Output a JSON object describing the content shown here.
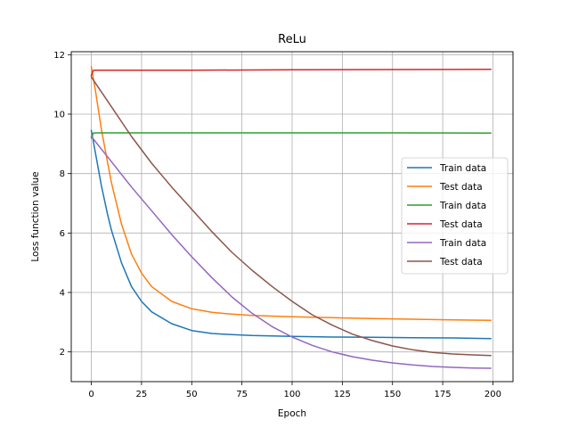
{
  "chart_data": {
    "type": "line",
    "title": "ReLu",
    "xlabel": "Epoch",
    "ylabel": "Loss function value",
    "xlim": [
      -10,
      210
    ],
    "ylim": [
      1.0,
      12.1
    ],
    "xticks": [
      0,
      25,
      50,
      75,
      100,
      125,
      150,
      175,
      200
    ],
    "yticks": [
      2,
      4,
      6,
      8,
      10,
      12
    ],
    "grid": true,
    "legend_position": "center-right",
    "series": [
      {
        "name": "Train data",
        "color": "#1f77b4",
        "x": [
          0,
          2,
          5,
          8,
          10,
          15,
          20,
          25,
          30,
          40,
          50,
          60,
          70,
          80,
          100,
          120,
          140,
          160,
          180,
          199
        ],
        "y": [
          9.45,
          8.7,
          7.6,
          6.65,
          6.1,
          5.0,
          4.2,
          3.7,
          3.35,
          2.95,
          2.72,
          2.62,
          2.58,
          2.55,
          2.52,
          2.5,
          2.49,
          2.48,
          2.47,
          2.45
        ]
      },
      {
        "name": "Test data",
        "color": "#ff7f0e",
        "x": [
          0,
          2,
          5,
          8,
          10,
          15,
          20,
          25,
          30,
          40,
          50,
          60,
          70,
          80,
          100,
          120,
          140,
          160,
          180,
          199
        ],
        "y": [
          11.6,
          10.8,
          9.5,
          8.4,
          7.7,
          6.3,
          5.3,
          4.65,
          4.2,
          3.7,
          3.45,
          3.33,
          3.27,
          3.23,
          3.18,
          3.15,
          3.12,
          3.1,
          3.08,
          3.06
        ]
      },
      {
        "name": "Train data",
        "color": "#2ca02c",
        "x": [
          0,
          1,
          2,
          50,
          100,
          150,
          199
        ],
        "y": [
          9.2,
          9.36,
          9.37,
          9.37,
          9.37,
          9.37,
          9.36
        ]
      },
      {
        "name": "Test data",
        "color": "#d62728",
        "x": [
          0,
          1,
          2,
          50,
          100,
          150,
          199
        ],
        "y": [
          11.3,
          11.47,
          11.48,
          11.48,
          11.49,
          11.5,
          11.51
        ]
      },
      {
        "name": "Train data",
        "color": "#9467bd",
        "x": [
          0,
          10,
          20,
          30,
          40,
          50,
          60,
          70,
          80,
          90,
          100,
          110,
          120,
          130,
          140,
          150,
          160,
          170,
          180,
          190,
          199
        ],
        "y": [
          9.25,
          8.4,
          7.55,
          6.75,
          5.95,
          5.2,
          4.5,
          3.85,
          3.3,
          2.85,
          2.5,
          2.22,
          2.0,
          1.84,
          1.72,
          1.63,
          1.56,
          1.51,
          1.48,
          1.46,
          1.45
        ]
      },
      {
        "name": "Test data",
        "color": "#8c564b",
        "x": [
          0,
          10,
          20,
          30,
          40,
          50,
          60,
          70,
          80,
          90,
          100,
          110,
          120,
          130,
          140,
          150,
          160,
          170,
          180,
          190,
          199
        ],
        "y": [
          11.25,
          10.25,
          9.25,
          8.35,
          7.55,
          6.8,
          6.05,
          5.35,
          4.75,
          4.2,
          3.7,
          3.25,
          2.9,
          2.6,
          2.38,
          2.2,
          2.07,
          1.98,
          1.93,
          1.9,
          1.88
        ]
      }
    ]
  }
}
